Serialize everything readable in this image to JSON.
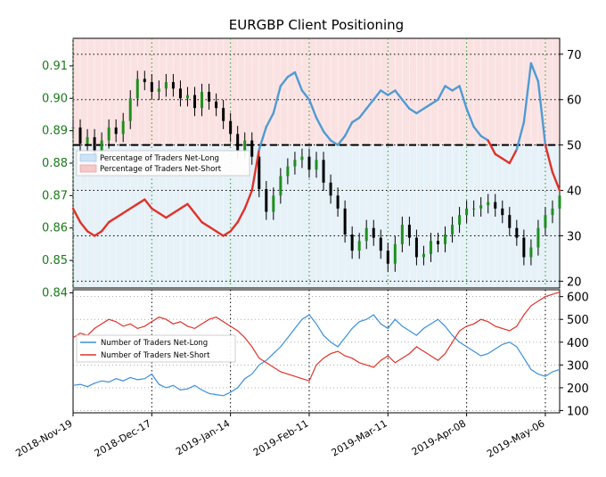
{
  "chart_data": [
    {
      "type": "line",
      "title": "EURGBP Client Positioning",
      "left_axis": {
        "ticks": [
          "0.84",
          "0.85",
          "0.86",
          "0.87",
          "0.88",
          "0.89",
          "0.90",
          "0.91"
        ],
        "range": [
          0.8415,
          0.9185
        ],
        "color": "#1a7a1a"
      },
      "right_axis": {
        "ticks": [
          "20",
          "30",
          "40",
          "50",
          "60",
          "70"
        ],
        "range": [
          18.5,
          73.5
        ]
      },
      "reference_line": 50,
      "legend": {
        "placement": "center-left",
        "entries": [
          "Percentage of Traders Net-Long",
          "Percentage of Traders Net-Short"
        ]
      },
      "price_candles_close": [
        0.891,
        0.886,
        0.888,
        0.882,
        0.887,
        0.891,
        0.889,
        0.893,
        0.9,
        0.906,
        0.905,
        0.902,
        0.903,
        0.905,
        0.903,
        0.9,
        0.901,
        0.897,
        0.902,
        0.899,
        0.897,
        0.893,
        0.889,
        0.884,
        0.887,
        0.882,
        0.872,
        0.865,
        0.87,
        0.876,
        0.879,
        0.881,
        0.882,
        0.878,
        0.881,
        0.874,
        0.87,
        0.866,
        0.858,
        0.853,
        0.856,
        0.86,
        0.857,
        0.853,
        0.849,
        0.855,
        0.861,
        0.857,
        0.851,
        0.852,
        0.856,
        0.855,
        0.858,
        0.861,
        0.864,
        0.866,
        0.866,
        0.867,
        0.868,
        0.866,
        0.864,
        0.86,
        0.857,
        0.851,
        0.854,
        0.86,
        0.864,
        0.866,
        0.87
      ],
      "net_long_pct": [
        36,
        33,
        31,
        30,
        31,
        33,
        34,
        35,
        36,
        37,
        38,
        36,
        35,
        34,
        35,
        36,
        37,
        35,
        33,
        32,
        31,
        30,
        31,
        33,
        36,
        40,
        49,
        54,
        57,
        63,
        65,
        66,
        62,
        60,
        56,
        53,
        51,
        50,
        52,
        55,
        56,
        58,
        60,
        62,
        61,
        62,
        60,
        58,
        57,
        58,
        59,
        60,
        63,
        62,
        63,
        58,
        54,
        52,
        51,
        48,
        47,
        46,
        49,
        55,
        68,
        64,
        50,
        44,
        40
      ],
      "net_short_pct": [
        36,
        33,
        31,
        30,
        31,
        33,
        34,
        35,
        36,
        37,
        38,
        36,
        35,
        34,
        35,
        36,
        37,
        35,
        33,
        32,
        31,
        30,
        31,
        33,
        36,
        40,
        49,
        54,
        57,
        63,
        65,
        66,
        62,
        60,
        56,
        53,
        51,
        50,
        52,
        55,
        56,
        58,
        60,
        62,
        61,
        62,
        60,
        58,
        57,
        58,
        59,
        60,
        63,
        62,
        63,
        58,
        54,
        52,
        51,
        48,
        47,
        46,
        49,
        55,
        68,
        64,
        50,
        44,
        40
      ]
    },
    {
      "type": "line",
      "right_axis": {
        "ticks": [
          "100",
          "200",
          "300",
          "400",
          "500",
          "600"
        ],
        "range": [
          90,
          630
        ]
      },
      "legend": {
        "placement": "center-left",
        "entries": [
          "Number of Traders Net-Long",
          "Number of Traders Net-Short"
        ]
      },
      "x_tick_labels": [
        "2018-Nov-19",
        "2018-Dec-17",
        "2019-Jan-14",
        "2019-Feb-11",
        "2019-Mar-11",
        "2019-Apr-08",
        "2019-May-06"
      ],
      "series": [
        {
          "name": "Number of Traders Net-Long",
          "color": "#3a8fde",
          "values": [
            210,
            215,
            205,
            220,
            230,
            225,
            240,
            230,
            245,
            235,
            240,
            260,
            215,
            200,
            210,
            190,
            195,
            210,
            190,
            175,
            170,
            165,
            180,
            200,
            240,
            260,
            300,
            320,
            350,
            380,
            420,
            460,
            500,
            520,
            480,
            430,
            400,
            380,
            420,
            460,
            490,
            500,
            520,
            480,
            460,
            500,
            470,
            450,
            430,
            460,
            480,
            500,
            470,
            430,
            400,
            380,
            360,
            340,
            350,
            370,
            390,
            400,
            380,
            330,
            280,
            260,
            250,
            270,
            280
          ]
        },
        {
          "name": "Number of Traders Net-Short",
          "color": "#e0322a",
          "values": [
            420,
            440,
            430,
            460,
            480,
            500,
            490,
            470,
            480,
            460,
            470,
            490,
            510,
            500,
            480,
            490,
            470,
            460,
            480,
            500,
            510,
            490,
            470,
            450,
            420,
            380,
            330,
            310,
            290,
            270,
            260,
            250,
            240,
            230,
            300,
            330,
            350,
            360,
            340,
            330,
            310,
            300,
            290,
            320,
            340,
            310,
            330,
            350,
            380,
            360,
            340,
            320,
            350,
            400,
            450,
            470,
            480,
            500,
            490,
            470,
            460,
            450,
            470,
            520,
            560,
            580,
            600,
            610,
            620
          ]
        }
      ]
    }
  ]
}
